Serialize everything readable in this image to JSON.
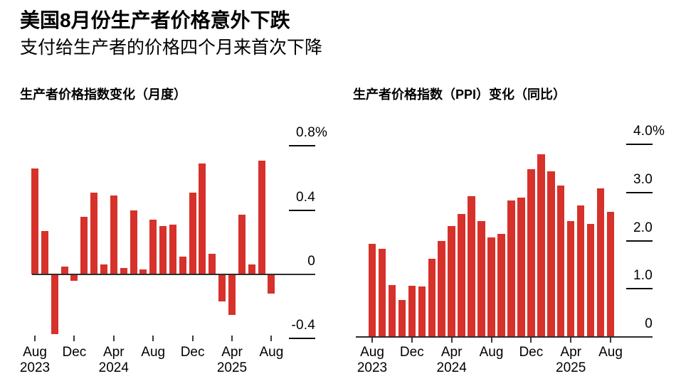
{
  "header": {
    "title": "美国8月份生产者价格意外下跌",
    "subtitle": "支付给生产者的价格四个月来首次下降"
  },
  "chart_data": [
    {
      "id": "ppi-monthly",
      "type": "bar",
      "title": "生产者价格指数变化（月度）",
      "unit": "%",
      "bar_color": "#d7312b",
      "xlabel": "",
      "ylabel": "",
      "ylim": [
        -0.5,
        0.9
      ],
      "grid": false,
      "legend": null,
      "categories": [
        "Aug 2023",
        "Sep 2023",
        "Oct 2023",
        "Nov 2023",
        "Dec 2023",
        "Jan 2024",
        "Feb 2024",
        "Mar 2024",
        "Apr 2024",
        "May 2024",
        "Jun 2024",
        "Jul 2024",
        "Aug 2024",
        "Sep 2024",
        "Oct 2024",
        "Nov 2024",
        "Dec 2024",
        "Jan 2025",
        "Feb 2025",
        "Mar 2025",
        "Apr 2025",
        "May 2025",
        "Jun 2025",
        "Jul 2025",
        "Aug 2025"
      ],
      "values": [
        0.66,
        0.27,
        -0.37,
        0.05,
        -0.04,
        0.36,
        0.51,
        0.06,
        0.49,
        0.04,
        0.4,
        0.03,
        0.34,
        0.3,
        0.31,
        0.11,
        0.51,
        0.69,
        0.13,
        -0.17,
        -0.25,
        0.37,
        0.06,
        0.71,
        -0.12
      ],
      "yticks": [
        {
          "label": "0.8%",
          "value": 0.8,
          "tick": true
        },
        {
          "label": "0.4",
          "value": 0.4,
          "tick": true
        },
        {
          "label": "0",
          "value": 0,
          "tick": false
        },
        {
          "label": "-0.4",
          "value": -0.4,
          "tick": true
        }
      ],
      "xticks": [
        {
          "label": "Aug",
          "year": "2023",
          "month_index": 0
        },
        {
          "label": "Dec",
          "month_index": 4
        },
        {
          "label": "Apr",
          "year": "2024",
          "month_index": 8
        },
        {
          "label": "Aug",
          "month_index": 12
        },
        {
          "label": "Dec",
          "month_index": 16
        },
        {
          "label": "Apr",
          "year": "2025",
          "month_index": 20
        },
        {
          "label": "Aug",
          "month_index": 24
        }
      ]
    },
    {
      "id": "ppi-yoy",
      "type": "bar",
      "title": "生产者价格指数（PPI）变化（同比）",
      "unit": "%",
      "bar_color": "#d7312b",
      "xlabel": "",
      "ylabel": "",
      "ylim": [
        0,
        4.2
      ],
      "grid": false,
      "legend": null,
      "categories": [
        "Aug 2023",
        "Sep 2023",
        "Oct 2023",
        "Nov 2023",
        "Dec 2023",
        "Jan 2024",
        "Feb 2024",
        "Mar 2024",
        "Apr 2024",
        "May 2024",
        "Jun 2024",
        "Jul 2024",
        "Aug 2024",
        "Sep 2024",
        "Oct 2024",
        "Nov 2024",
        "Dec 2024",
        "Jan 2025",
        "Feb 2025",
        "Mar 2025",
        "Apr 2025",
        "May 2025",
        "Jun 2025",
        "Jul 2025",
        "Aug 2025"
      ],
      "values": [
        1.93,
        1.83,
        1.08,
        0.77,
        1.06,
        1.05,
        1.63,
        1.99,
        2.3,
        2.55,
        2.92,
        2.4,
        2.06,
        2.14,
        2.84,
        2.9,
        3.48,
        3.8,
        3.44,
        3.15,
        2.4,
        2.73,
        2.35,
        3.09,
        2.6
      ],
      "yticks": [
        {
          "label": "4.0%",
          "value": 4.0,
          "tick": true
        },
        {
          "label": "3.0",
          "value": 3.0,
          "tick": true
        },
        {
          "label": "2.0",
          "value": 2.0,
          "tick": true
        },
        {
          "label": "1.0",
          "value": 1.0,
          "tick": true
        },
        {
          "label": "0",
          "value": 0,
          "tick": false
        }
      ],
      "xticks": [
        {
          "label": "Aug",
          "year": "2023",
          "month_index": 0
        },
        {
          "label": "Dec",
          "month_index": 4
        },
        {
          "label": "Apr",
          "year": "2024",
          "month_index": 8
        },
        {
          "label": "Aug",
          "month_index": 12
        },
        {
          "label": "Dec",
          "month_index": 16
        },
        {
          "label": "Apr",
          "year": "2025",
          "month_index": 20
        },
        {
          "label": "Aug",
          "month_index": 24
        }
      ]
    }
  ]
}
